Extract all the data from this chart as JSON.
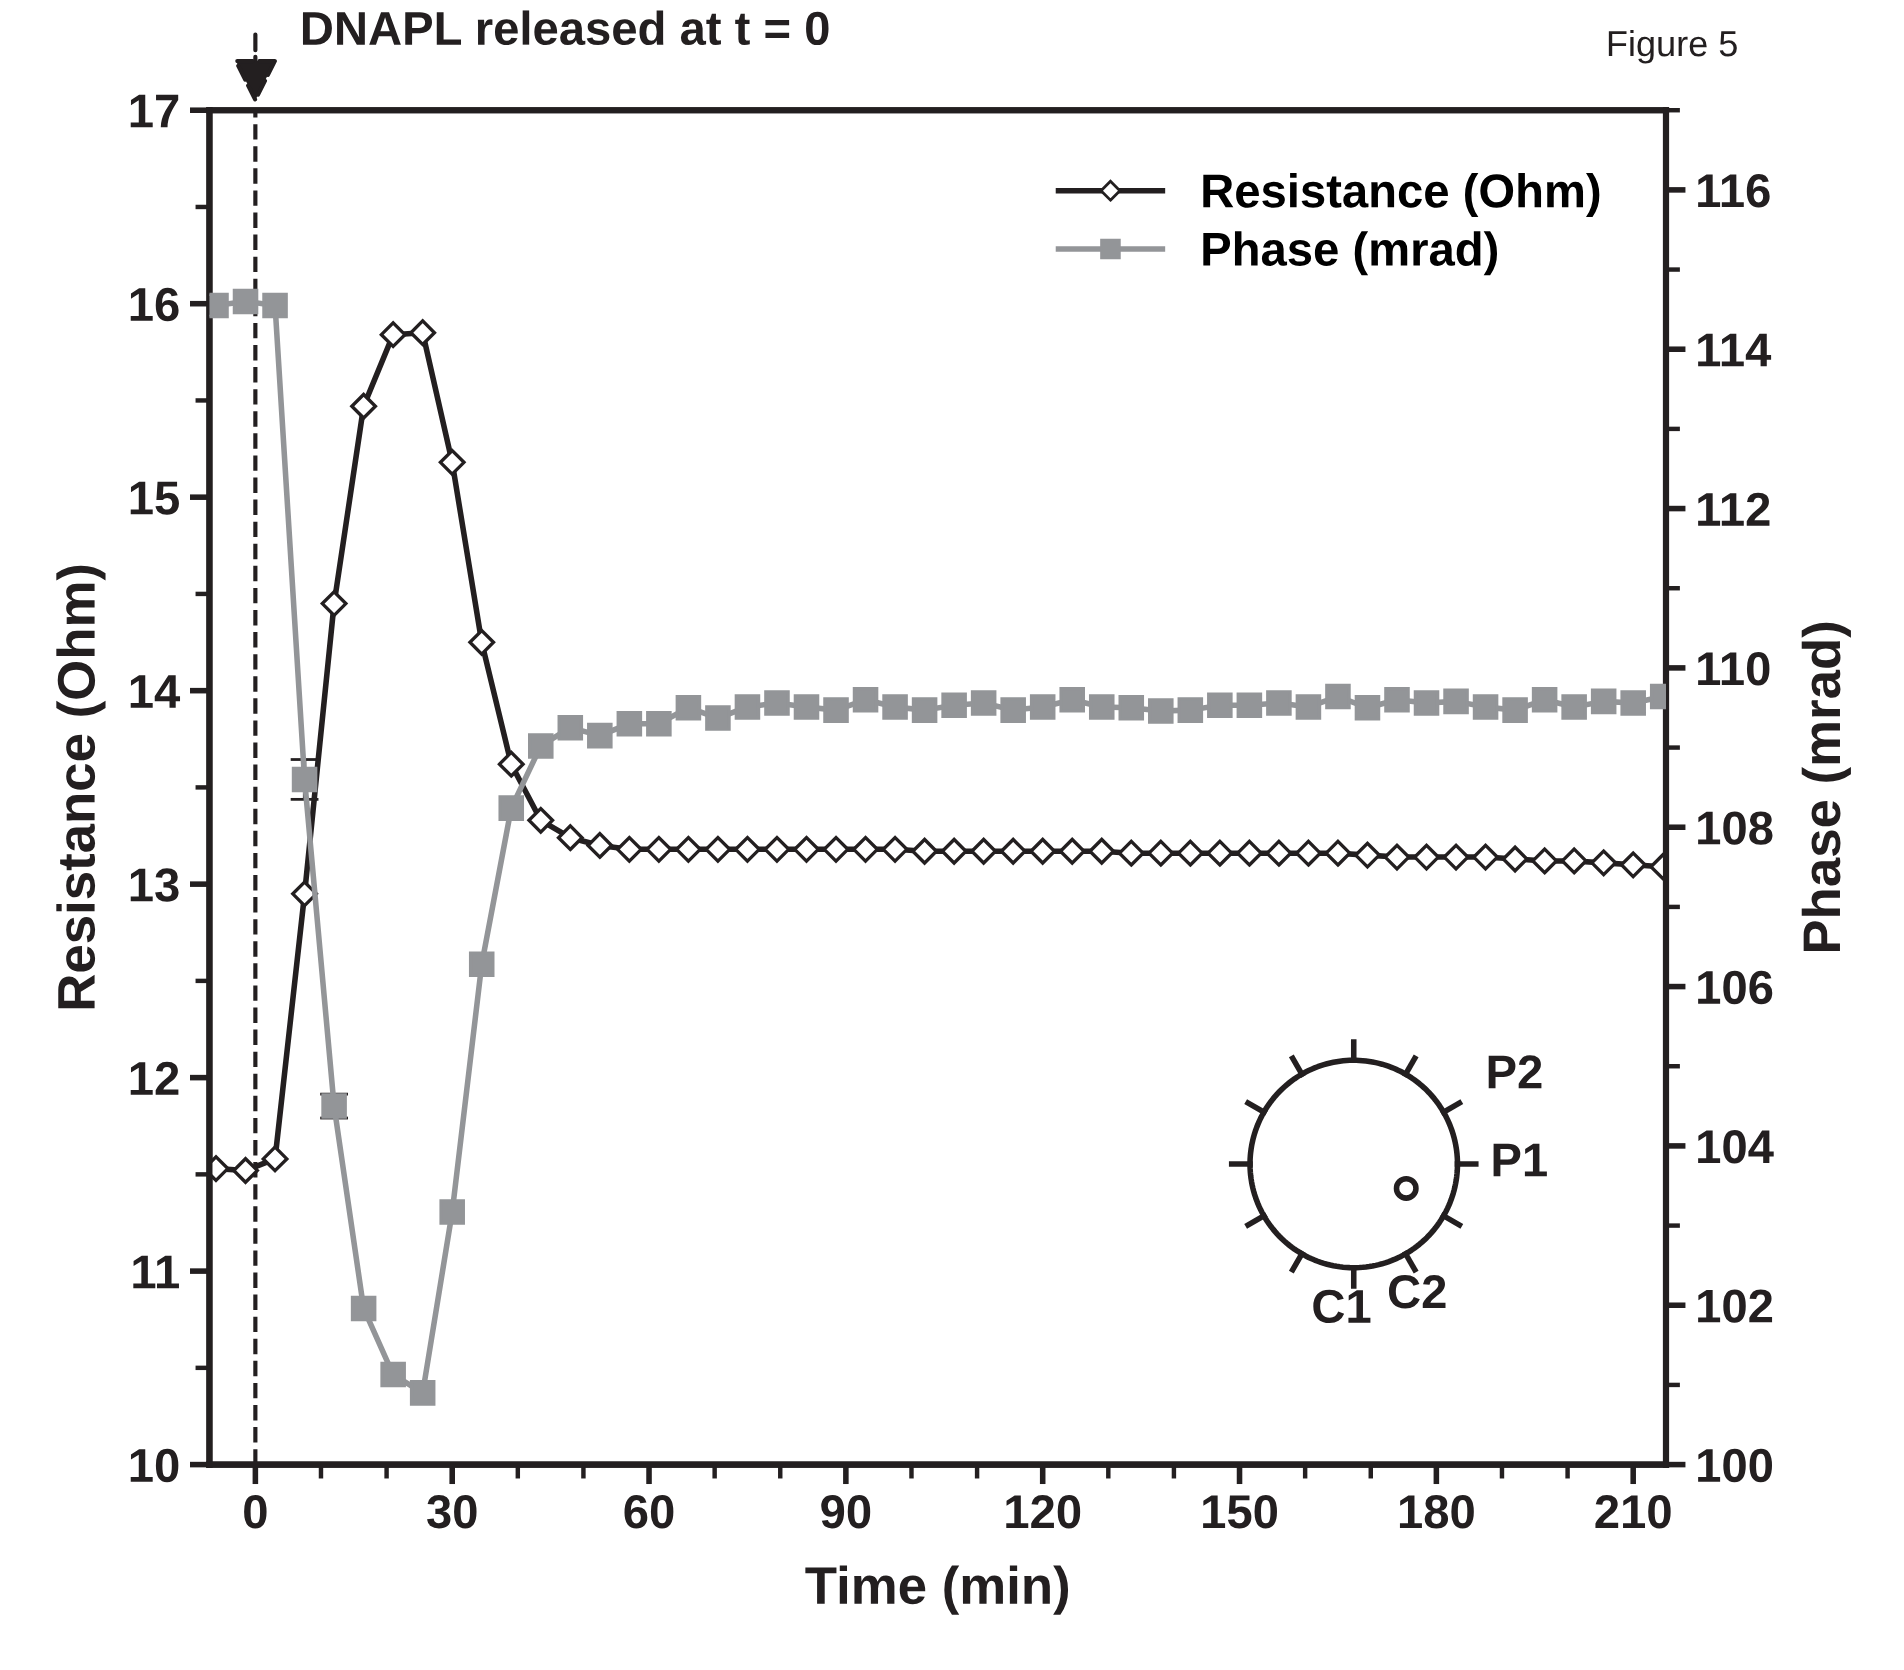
{
  "chart_data": {
    "type": "line",
    "x": [
      -6,
      -1.5,
      3,
      7.5,
      12,
      16.5,
      21,
      25.5,
      30,
      34.5,
      39,
      43.5,
      48,
      52.5,
      57,
      61.5,
      66,
      70.5,
      75,
      79.5,
      84,
      88.5,
      93,
      97.5,
      102,
      106.5,
      111,
      115.5,
      120,
      124.5,
      129,
      133.5,
      138,
      142.5,
      147,
      151.5,
      156,
      160.5,
      165,
      169.5,
      174,
      178.5,
      183,
      187.5,
      192,
      196.5,
      201,
      205.5,
      210,
      214.5
    ],
    "series": [
      {
        "name": "Resistance (Ohm)",
        "color": "#231f20",
        "marker": "diamond",
        "axis": "y",
        "values": [
          11.53,
          11.52,
          11.58,
          12.95,
          14.45,
          15.47,
          15.84,
          15.85,
          15.18,
          14.25,
          13.62,
          13.33,
          13.24,
          13.2,
          13.18,
          13.18,
          13.18,
          13.18,
          13.18,
          13.18,
          13.18,
          13.18,
          13.18,
          13.18,
          13.17,
          13.17,
          13.17,
          13.17,
          13.17,
          13.17,
          13.17,
          13.16,
          13.16,
          13.16,
          13.16,
          13.16,
          13.16,
          13.16,
          13.16,
          13.15,
          13.14,
          13.14,
          13.14,
          13.14,
          13.13,
          13.12,
          13.12,
          13.11,
          13.1,
          13.09
        ]
      },
      {
        "name": "Phase (mrad)",
        "color": "#939598",
        "marker": "square",
        "axis": "y2",
        "values": [
          114.55,
          114.6,
          114.55,
          108.6,
          104.5,
          101.96,
          101.13,
          100.9,
          103.17,
          106.28,
          108.24,
          109.02,
          109.25,
          109.15,
          109.3,
          109.3,
          109.5,
          109.37,
          109.51,
          109.56,
          109.51,
          109.47,
          109.6,
          109.51,
          109.47,
          109.53,
          109.56,
          109.47,
          109.51,
          109.6,
          109.51,
          109.5,
          109.46,
          109.47,
          109.53,
          109.53,
          109.56,
          109.51,
          109.64,
          109.5,
          109.6,
          109.56,
          109.58,
          109.51,
          109.47,
          109.6,
          109.51,
          109.58,
          109.56,
          109.64
        ],
        "errors": [
          null,
          null,
          null,
          0.25,
          0.15,
          null,
          null,
          null,
          null,
          null,
          null,
          null,
          null,
          null,
          null,
          null,
          null,
          null,
          null,
          null,
          null,
          null,
          null,
          null,
          null,
          null,
          null,
          null,
          null,
          null,
          null,
          null,
          null,
          null,
          null,
          null,
          null,
          null,
          null,
          null,
          null,
          null,
          null,
          null,
          null,
          null,
          null,
          null,
          null,
          null
        ]
      }
    ],
    "xlabel": "Time (min)",
    "ylabel": "Resistance (Ohm)",
    "y2label": "Phase (mrad)",
    "xlim": [
      -7,
      215
    ],
    "xticks": [
      0,
      30,
      60,
      90,
      120,
      150,
      180,
      210
    ],
    "ylim": [
      10,
      17
    ],
    "yticks": [
      10,
      11,
      12,
      13,
      14,
      15,
      16,
      17
    ],
    "y2lim": [
      100,
      117
    ],
    "y2ticks": [
      100,
      102,
      104,
      106,
      108,
      110,
      112,
      114,
      116
    ],
    "ref_lines": [
      {
        "axis": "x",
        "value": 0,
        "label": "DNAPL released at t = 0",
        "color": "#231f20",
        "line_style": "dashed"
      }
    ],
    "annotations": [
      "Figure 5",
      "P2",
      "P1",
      "C1",
      "C2"
    ],
    "legend": "top right",
    "grid": false,
    "line_style": "solid"
  }
}
